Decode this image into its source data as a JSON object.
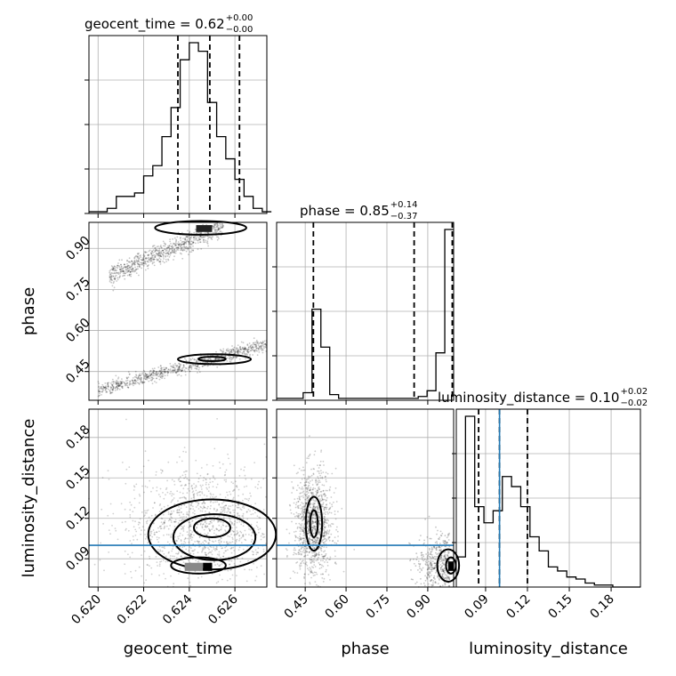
{
  "chart_data": {
    "type": "corner",
    "parameters": [
      "geocent_time",
      "phase",
      "luminosity_distance"
    ],
    "axis_labels": {
      "geocent_time": "geocent_time",
      "phase": "phase",
      "luminosity_distance": "luminosity_distance"
    },
    "titles": [
      {
        "param": "geocent_time",
        "text": "geocent_time = 0.62",
        "sup": "+0.00",
        "sub": "−0.00"
      },
      {
        "param": "phase",
        "text": "phase = 0.85",
        "sup": "+0.14",
        "sub": "−0.37"
      },
      {
        "param": "luminosity_distance",
        "text": "luminosity_distance = 0.10",
        "sup": "+0.02",
        "sub": "−0.02"
      }
    ],
    "ranges": {
      "geocent_time": [
        0.6196,
        0.6274
      ],
      "phase": [
        0.345,
        0.995
      ],
      "luminosity_distance": [
        0.069,
        0.201
      ]
    },
    "ticks": {
      "geocent_time": [
        "0.620",
        "0.622",
        "0.624",
        "0.626"
      ],
      "phase": [
        "0.45",
        "0.60",
        "0.75",
        "0.90"
      ],
      "luminosity_distance": [
        "0.09",
        "0.12",
        "0.15",
        "0.18"
      ]
    },
    "quantiles": {
      "geocent_time": [
        0.6235,
        0.6249,
        0.6262
      ],
      "phase": [
        0.48,
        0.85,
        0.99
      ],
      "luminosity_distance": [
        0.085,
        0.1,
        0.12
      ]
    },
    "truths": {
      "luminosity_distance": 0.1
    },
    "histograms": {
      "geocent_time": {
        "edges_start": 0.6196,
        "bin_width": 0.0004,
        "counts": [
          1,
          1,
          3,
          10,
          10,
          12,
          22,
          28,
          45,
          62,
          90,
          100,
          95,
          65,
          45,
          32,
          20,
          10,
          3,
          1
        ]
      },
      "phase": {
        "edges_start": 0.345,
        "bin_width": 0.0325,
        "counts": [
          1,
          1,
          1,
          4,
          48,
          28,
          3,
          1,
          1,
          1,
          1,
          1,
          1,
          1,
          1,
          1,
          2,
          5,
          25,
          90
        ]
      },
      "luminosity_distance": {
        "edges_start": 0.069,
        "bin_width": 0.0066,
        "counts": [
          15,
          85,
          40,
          32,
          38,
          55,
          50,
          40,
          25,
          18,
          10,
          8,
          5,
          4,
          2,
          1,
          1,
          0,
          0,
          0
        ]
      }
    },
    "grid": true
  }
}
